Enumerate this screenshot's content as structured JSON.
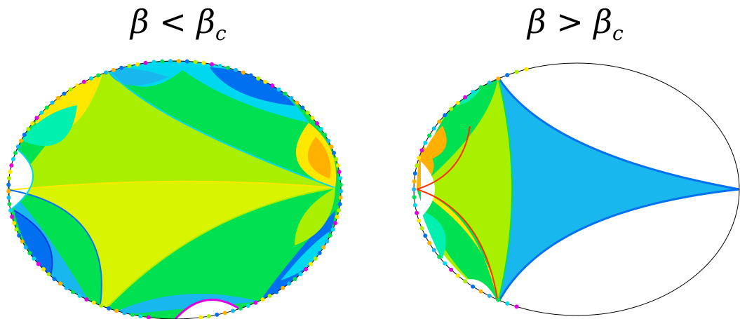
{
  "panels": [
    {
      "label": {
        "symbol": "β",
        "relation": "<",
        "critical_symbol": "β",
        "critical_subscript": "c"
      }
    },
    {
      "label": {
        "symbol": "β",
        "relation": ">",
        "critical_symbol": "β",
        "critical_subscript": "c"
      }
    }
  ],
  "palette": {
    "green": "#00e050",
    "lime": "#a8f000",
    "yellow_green": "#d8f400",
    "yellow": "#ffe800",
    "orange": "#ffb000",
    "cyan": "#00d8f0",
    "sky_blue": "#18b8ee",
    "blue": "#0070f0",
    "aqua_green": "#00f0b0",
    "magenta": "#e000e0",
    "outline": "#000000"
  }
}
